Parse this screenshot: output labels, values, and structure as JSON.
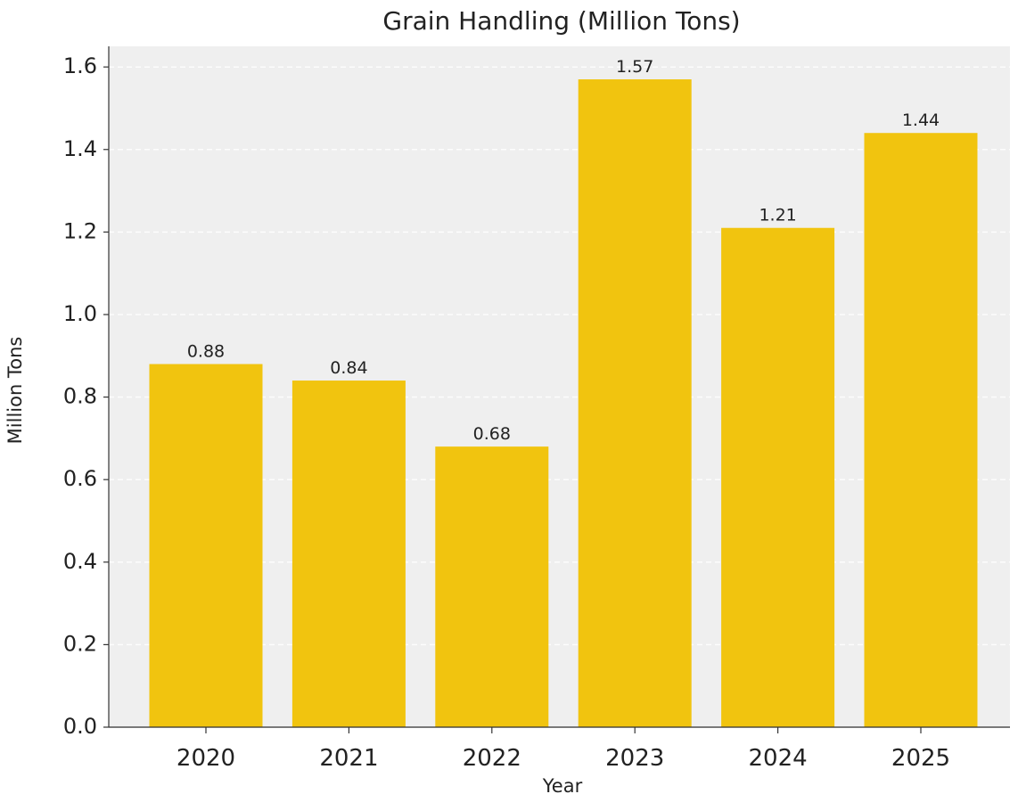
{
  "chart_data": {
    "type": "bar",
    "title": "Grain Handling (Million Tons)",
    "xlabel": "Year",
    "ylabel": "Million Tons",
    "categories": [
      "2020",
      "2021",
      "2022",
      "2023",
      "2024",
      "2025"
    ],
    "values": [
      0.88,
      0.84,
      0.68,
      1.57,
      1.21,
      1.44
    ],
    "data_labels": [
      "0.88",
      "0.84",
      "0.68",
      "1.57",
      "1.21",
      "1.44"
    ],
    "ylim": [
      0,
      1.65
    ],
    "yticks": [
      0.0,
      0.2,
      0.4,
      0.6,
      0.8,
      1.0,
      1.2,
      1.4,
      1.6
    ],
    "ytick_labels": [
      "0.0",
      "0.2",
      "0.4",
      "0.6",
      "0.8",
      "1.0",
      "1.2",
      "1.4",
      "1.6"
    ],
    "grid": true,
    "grid_style": "dashed",
    "legend": "none",
    "colors": {
      "bar": "#f1c40f",
      "plot_background": "#efefef",
      "grid": "#ffffff",
      "text": "#222222"
    }
  }
}
